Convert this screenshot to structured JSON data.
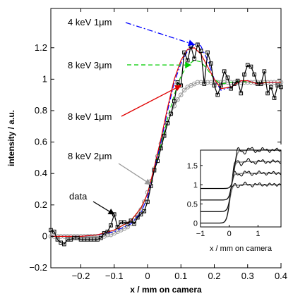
{
  "chart_data": [
    {
      "type": "line",
      "xlabel": "x / mm on camera",
      "ylabel": "intensity / a.u.",
      "xlim": [
        -0.29,
        0.4
      ],
      "ylim": [
        -0.2,
        1.45
      ],
      "grid": false,
      "x_ticks": [
        -0.2,
        -0.1,
        0,
        0.1,
        0.2,
        0.3,
        0.4
      ],
      "x_tick_labels": [
        "−0.2",
        "−0.1",
        "0",
        "0.1",
        "0.2",
        "0.3",
        "0.4"
      ],
      "y_ticks": [
        -0.2,
        0,
        0.2,
        0.4,
        0.6,
        0.8,
        1,
        1.2
      ],
      "y_tick_labels": [
        "−0.2",
        "0",
        "0.2",
        "0.4",
        "0.6",
        "0.8",
        "1",
        "1.2"
      ],
      "series": [
        {
          "name": "data",
          "color": "#000000",
          "style": "solid-square-markers",
          "x": [
            -0.29,
            -0.28,
            -0.27,
            -0.26,
            -0.25,
            -0.24,
            -0.23,
            -0.22,
            -0.21,
            -0.2,
            -0.19,
            -0.18,
            -0.17,
            -0.16,
            -0.15,
            -0.14,
            -0.13,
            -0.12,
            -0.11,
            -0.1,
            -0.09,
            -0.08,
            -0.07,
            -0.06,
            -0.05,
            -0.04,
            -0.03,
            -0.02,
            -0.01,
            0.0,
            0.01,
            0.02,
            0.03,
            0.04,
            0.05,
            0.06,
            0.07,
            0.08,
            0.09,
            0.1,
            0.11,
            0.12,
            0.13,
            0.14,
            0.15,
            0.16,
            0.17,
            0.18,
            0.19,
            0.2,
            0.21,
            0.22,
            0.23,
            0.24,
            0.25,
            0.26,
            0.27,
            0.28,
            0.29,
            0.3,
            0.31,
            0.32,
            0.33,
            0.34,
            0.35,
            0.36,
            0.37,
            0.38,
            0.39,
            0.4
          ],
          "y": [
            0.04,
            0.03,
            -0.02,
            -0.04,
            -0.05,
            -0.02,
            -0.02,
            -0.01,
            -0.01,
            -0.02,
            -0.02,
            -0.02,
            -0.02,
            -0.02,
            -0.02,
            -0.01,
            0.02,
            0.03,
            0.07,
            0.14,
            0.06,
            0.09,
            0.09,
            0.08,
            0.1,
            0.08,
            0.12,
            0.14,
            0.16,
            0.22,
            0.32,
            0.42,
            0.48,
            0.56,
            0.64,
            0.72,
            0.78,
            0.86,
            0.98,
            0.96,
            1.17,
            1.12,
            1.21,
            1.13,
            1.22,
            1.18,
            0.97,
            1.17,
            1.1,
            0.96,
            0.9,
            0.96,
            1.05,
            1.01,
            0.94,
            0.97,
            0.99,
            0.91,
            1.03,
            1.09,
            1.08,
            1.03,
            0.97,
            0.97,
            1.05,
            0.91,
            0.95,
            0.88,
            0.96,
            0.95
          ]
        },
        {
          "name": "4 keV 1μm",
          "color": "#0000ff",
          "style": "dash-dot",
          "x": [
            -0.29,
            -0.2,
            -0.15,
            -0.1,
            -0.05,
            -0.02,
            0.0,
            0.02,
            0.04,
            0.06,
            0.08,
            0.1,
            0.12,
            0.14,
            0.15,
            0.16,
            0.18,
            0.2,
            0.22,
            0.25,
            0.28,
            0.3,
            0.33,
            0.36,
            0.4
          ],
          "y": [
            0.0,
            0.0,
            0.01,
            0.03,
            0.08,
            0.15,
            0.25,
            0.42,
            0.6,
            0.8,
            0.98,
            1.1,
            1.18,
            1.22,
            1.23,
            1.21,
            1.12,
            1.0,
            0.93,
            0.95,
            0.99,
            0.99,
            0.97,
            0.98,
            0.98
          ]
        },
        {
          "name": "8 keV 3μm",
          "color": "#00cc00",
          "style": "dashed",
          "x": [
            -0.29,
            -0.2,
            -0.15,
            -0.1,
            -0.05,
            -0.02,
            0.0,
            0.02,
            0.04,
            0.06,
            0.08,
            0.1,
            0.12,
            0.14,
            0.16,
            0.18,
            0.2,
            0.22,
            0.25,
            0.28,
            0.3,
            0.33,
            0.36,
            0.4
          ],
          "y": [
            0.0,
            0.0,
            0.01,
            0.04,
            0.1,
            0.18,
            0.27,
            0.42,
            0.58,
            0.75,
            0.9,
            1.02,
            1.09,
            1.12,
            1.11,
            1.06,
            1.0,
            0.97,
            0.98,
            0.99,
            0.98,
            0.98,
            0.98,
            0.98
          ]
        },
        {
          "name": "8 keV 1μm",
          "color": "#e00000",
          "style": "solid",
          "x": [
            -0.29,
            -0.2,
            -0.15,
            -0.1,
            -0.05,
            -0.02,
            0.0,
            0.02,
            0.04,
            0.06,
            0.08,
            0.1,
            0.12,
            0.14,
            0.16,
            0.18,
            0.2,
            0.22,
            0.25,
            0.28,
            0.3,
            0.33,
            0.36,
            0.4
          ],
          "y": [
            0.0,
            0.0,
            0.01,
            0.04,
            0.1,
            0.18,
            0.27,
            0.44,
            0.62,
            0.82,
            1.0,
            1.12,
            1.19,
            1.2,
            1.16,
            1.08,
            1.0,
            0.94,
            0.95,
            0.99,
            0.99,
            0.97,
            0.98,
            0.98
          ]
        },
        {
          "name": "8 keV 2μm",
          "color": "#999999",
          "style": "solid-circle-markers",
          "x": [
            -0.29,
            -0.28,
            -0.27,
            -0.26,
            -0.25,
            -0.24,
            -0.23,
            -0.22,
            -0.21,
            -0.2,
            -0.19,
            -0.18,
            -0.17,
            -0.16,
            -0.15,
            -0.14,
            -0.13,
            -0.12,
            -0.11,
            -0.1,
            -0.09,
            -0.08,
            -0.07,
            -0.06,
            -0.05,
            -0.04,
            -0.03,
            -0.02,
            -0.01,
            0.0,
            0.01,
            0.02,
            0.03,
            0.04,
            0.05,
            0.06,
            0.07,
            0.08,
            0.09,
            0.1,
            0.11,
            0.12,
            0.13,
            0.14,
            0.15,
            0.16,
            0.17,
            0.18,
            0.19,
            0.2,
            0.21,
            0.22,
            0.23,
            0.24,
            0.25,
            0.26,
            0.27,
            0.28,
            0.29,
            0.3,
            0.31,
            0.32,
            0.33,
            0.34,
            0.35,
            0.36,
            0.37,
            0.38,
            0.39,
            0.4
          ],
          "y": [
            0.0,
            0.0,
            0.0,
            0.0,
            0.0,
            0.0,
            0.0,
            0.0,
            0.0,
            0.0,
            0.0,
            0.0,
            0.0,
            0.0,
            0.0,
            0.0,
            0.0,
            0.01,
            0.01,
            0.02,
            0.03,
            0.04,
            0.05,
            0.06,
            0.08,
            0.1,
            0.13,
            0.17,
            0.22,
            0.28,
            0.35,
            0.43,
            0.51,
            0.59,
            0.66,
            0.72,
            0.78,
            0.83,
            0.87,
            0.9,
            0.93,
            0.95,
            0.96,
            0.97,
            0.98,
            0.98,
            0.98,
            0.98,
            0.98,
            0.98,
            0.98,
            0.98,
            0.98,
            0.98,
            0.98,
            0.98,
            0.98,
            0.98,
            0.98,
            0.98,
            0.98,
            0.98,
            0.98,
            0.98,
            0.98,
            0.98,
            0.98,
            0.98,
            0.98,
            0.98
          ]
        }
      ],
      "annotations": [
        {
          "text": "4 keV 1μm",
          "color": "#0000ff",
          "points_to": [
            0.14,
            1.22
          ]
        },
        {
          "text": "8 keV 3μm",
          "color": "#00cc00",
          "points_to": [
            0.13,
            1.09
          ]
        },
        {
          "text": "8 keV 1μm",
          "color": "#e00000",
          "points_to": [
            0.1,
            0.96
          ]
        },
        {
          "text": "8 keV 2μm",
          "color": "#999999",
          "points_to": [
            0.01,
            0.33
          ]
        },
        {
          "text": "data",
          "color": "#000000",
          "points_to": [
            -0.1,
            0.14
          ]
        }
      ]
    },
    {
      "type": "line",
      "xlabel": "x / mm on camera",
      "ylabel": "",
      "xlim": [
        -1,
        1.8
      ],
      "ylim": [
        -0.1,
        1.9
      ],
      "x_ticks": [
        -1,
        0,
        1
      ],
      "x_tick_labels": [
        "−1",
        "0",
        "1"
      ],
      "y_ticks": [
        0,
        0.5,
        1,
        1.5
      ],
      "y_tick_labels": [
        "0",
        "0.5",
        "1",
        "1.5"
      ],
      "series": [
        {
          "offset": 0.0,
          "edge": 0.0
        },
        {
          "offset": 0.3,
          "edge": 0.05
        },
        {
          "offset": 0.6,
          "edge": 0.1
        },
        {
          "offset": 0.9,
          "edge": 0.18
        }
      ]
    }
  ]
}
